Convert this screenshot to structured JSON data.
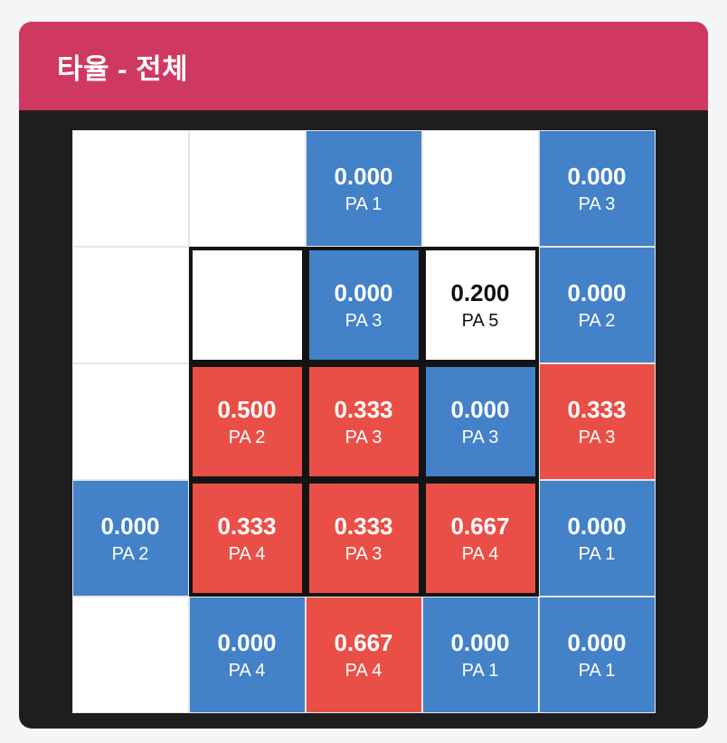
{
  "header": {
    "title": "타율 - 전체"
  },
  "colors": {
    "page_bg": "#f4f5f7",
    "header_bg": "#cf3961",
    "panel_bg": "#1e1e20",
    "blue": "#4381c8",
    "red": "#ea4f47",
    "white_cell": "#ffffff",
    "zone_border": "#141414",
    "grid_line": "#e6e6e6"
  },
  "chart_data": {
    "type": "heatmap",
    "title": "타율 - 전체",
    "description": "Batting average by pitch location, 5x5 zones; inner 3x3 (rows 2-4, cols 2-4) outlined in black as the strike zone; blue = low average, red = high average, white = no data",
    "grid_size": {
      "rows": 5,
      "cols": 5
    },
    "strike_zone": {
      "row_start": 2,
      "row_end": 4,
      "col_start": 2,
      "col_end": 4
    },
    "cells": [
      [
        {
          "avg": null,
          "avg_label": "",
          "pa": null,
          "pa_label": "",
          "fill": "white",
          "in_strike_zone": false
        },
        {
          "avg": null,
          "avg_label": "",
          "pa": null,
          "pa_label": "",
          "fill": "white",
          "in_strike_zone": false
        },
        {
          "avg": 0.0,
          "avg_label": "0.000",
          "pa": 1,
          "pa_label": "PA 1",
          "fill": "blue",
          "in_strike_zone": false
        },
        {
          "avg": null,
          "avg_label": "",
          "pa": null,
          "pa_label": "",
          "fill": "white",
          "in_strike_zone": false
        },
        {
          "avg": 0.0,
          "avg_label": "0.000",
          "pa": 3,
          "pa_label": "PA 3",
          "fill": "blue",
          "in_strike_zone": false
        }
      ],
      [
        {
          "avg": null,
          "avg_label": "",
          "pa": null,
          "pa_label": "",
          "fill": "white",
          "in_strike_zone": false
        },
        {
          "avg": null,
          "avg_label": "",
          "pa": null,
          "pa_label": "",
          "fill": "white",
          "in_strike_zone": true
        },
        {
          "avg": 0.0,
          "avg_label": "0.000",
          "pa": 3,
          "pa_label": "PA 3",
          "fill": "blue",
          "in_strike_zone": true
        },
        {
          "avg": 0.2,
          "avg_label": "0.200",
          "pa": 5,
          "pa_label": "PA 5",
          "fill": "white",
          "in_strike_zone": true
        },
        {
          "avg": 0.0,
          "avg_label": "0.000",
          "pa": 2,
          "pa_label": "PA 2",
          "fill": "blue",
          "in_strike_zone": false
        }
      ],
      [
        {
          "avg": null,
          "avg_label": "",
          "pa": null,
          "pa_label": "",
          "fill": "white",
          "in_strike_zone": false
        },
        {
          "avg": 0.5,
          "avg_label": "0.500",
          "pa": 2,
          "pa_label": "PA 2",
          "fill": "red",
          "in_strike_zone": true
        },
        {
          "avg": 0.333,
          "avg_label": "0.333",
          "pa": 3,
          "pa_label": "PA 3",
          "fill": "red",
          "in_strike_zone": true
        },
        {
          "avg": 0.0,
          "avg_label": "0.000",
          "pa": 3,
          "pa_label": "PA 3",
          "fill": "blue",
          "in_strike_zone": true
        },
        {
          "avg": 0.333,
          "avg_label": "0.333",
          "pa": 3,
          "pa_label": "PA 3",
          "fill": "red",
          "in_strike_zone": false
        }
      ],
      [
        {
          "avg": 0.0,
          "avg_label": "0.000",
          "pa": 2,
          "pa_label": "PA 2",
          "fill": "blue",
          "in_strike_zone": false
        },
        {
          "avg": 0.333,
          "avg_label": "0.333",
          "pa": 4,
          "pa_label": "PA 4",
          "fill": "red",
          "in_strike_zone": true
        },
        {
          "avg": 0.333,
          "avg_label": "0.333",
          "pa": 3,
          "pa_label": "PA 3",
          "fill": "red",
          "in_strike_zone": true
        },
        {
          "avg": 0.667,
          "avg_label": "0.667",
          "pa": 4,
          "pa_label": "PA 4",
          "fill": "red",
          "in_strike_zone": true
        },
        {
          "avg": 0.0,
          "avg_label": "0.000",
          "pa": 1,
          "pa_label": "PA 1",
          "fill": "blue",
          "in_strike_zone": false
        }
      ],
      [
        {
          "avg": null,
          "avg_label": "",
          "pa": null,
          "pa_label": "",
          "fill": "white",
          "in_strike_zone": false
        },
        {
          "avg": 0.0,
          "avg_label": "0.000",
          "pa": 4,
          "pa_label": "PA 4",
          "fill": "blue",
          "in_strike_zone": false
        },
        {
          "avg": 0.667,
          "avg_label": "0.667",
          "pa": 4,
          "pa_label": "PA 4",
          "fill": "red",
          "in_strike_zone": false
        },
        {
          "avg": 0.0,
          "avg_label": "0.000",
          "pa": 1,
          "pa_label": "PA 1",
          "fill": "blue",
          "in_strike_zone": false
        },
        {
          "avg": 0.0,
          "avg_label": "0.000",
          "pa": 1,
          "pa_label": "PA 1",
          "fill": "blue",
          "in_strike_zone": false
        }
      ]
    ]
  }
}
